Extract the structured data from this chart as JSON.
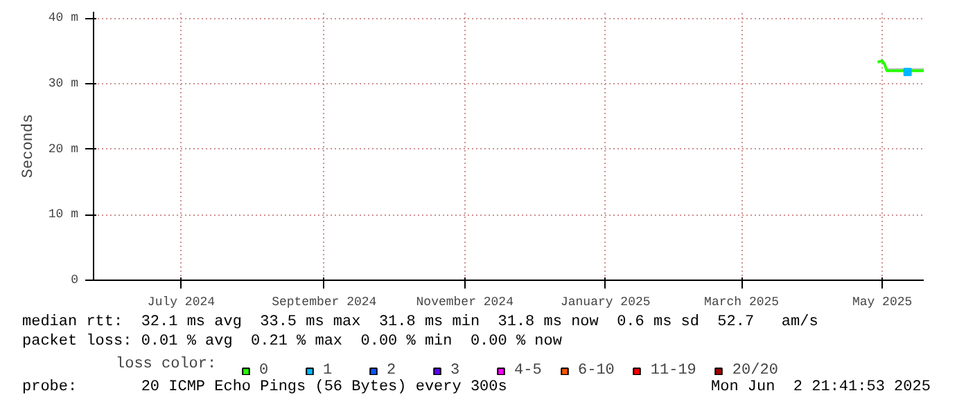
{
  "chart_data": {
    "type": "line",
    "ylabel": "Seconds",
    "legend_title": "loss color:",
    "xlim": [
      "2024-06-07",
      "2025-06-02"
    ],
    "xticks": [
      {
        "value": "2024-07-15",
        "label": "July 2024"
      },
      {
        "value": "2024-09-15",
        "label": "September 2024"
      },
      {
        "value": "2024-11-15",
        "label": "November 2024"
      },
      {
        "value": "2025-01-15",
        "label": "January 2025"
      },
      {
        "value": "2025-03-15",
        "label": "March 2025"
      },
      {
        "value": "2025-05-15",
        "label": "May 2025"
      }
    ],
    "ylim": [
      0,
      41
    ],
    "yticks": [
      {
        "value": 0,
        "label": "0"
      },
      {
        "value": 10,
        "label": "10 m"
      },
      {
        "value": 20,
        "label": "20 m"
      },
      {
        "value": 30,
        "label": "30 m"
      },
      {
        "value": 40,
        "label": "40 m"
      }
    ],
    "grid": true,
    "legend": "bottom",
    "series": [
      {
        "name": "0",
        "color": "#26ff00",
        "x": [
          "2025-05-13",
          "2025-05-15",
          "2025-05-16",
          "2025-05-17",
          "2025-05-22",
          "2025-05-27",
          "2025-06-02"
        ],
        "values": [
          33.3,
          33.5,
          33.0,
          32.0,
          32.0,
          32.0,
          32.0
        ],
        "lower": [
          33.3,
          33.5,
          33.0,
          32.0,
          32.0,
          32.0,
          32.0
        ],
        "upper": [
          33.5,
          33.7,
          33.3,
          32.4,
          32.4,
          32.4,
          32.4
        ]
      },
      {
        "name": "1",
        "type": "scatter",
        "color": "#00b8ff",
        "x": [
          "2025-05-26"
        ],
        "values": [
          31.8
        ]
      },
      {
        "name": "2",
        "type": "scatter",
        "color": "#0059ff"
      },
      {
        "name": "3",
        "type": "scatter",
        "color": "#5e00ff"
      },
      {
        "name": "4-5",
        "type": "scatter",
        "color": "#ff00ff"
      },
      {
        "name": "6-10",
        "type": "scatter",
        "color": "#ff5500"
      },
      {
        "name": "11-19",
        "type": "scatter",
        "color": "#ff0000"
      },
      {
        "name": "20/20",
        "type": "scatter",
        "color": "#a10000"
      }
    ],
    "annotations": [
      "median rtt:  32.1 ms avg  33.5 ms max  31.8 ms min  31.8 ms now  0.6 ms sd  52.7   am/s",
      "packet loss: 0.01 % avg  0.21 % max  0.00 % min  0.00 % now",
      "probe:       20 ICMP Echo Pings (56 Bytes) every 300s",
      "Mon Jun  2 21:41:53 2025"
    ]
  }
}
